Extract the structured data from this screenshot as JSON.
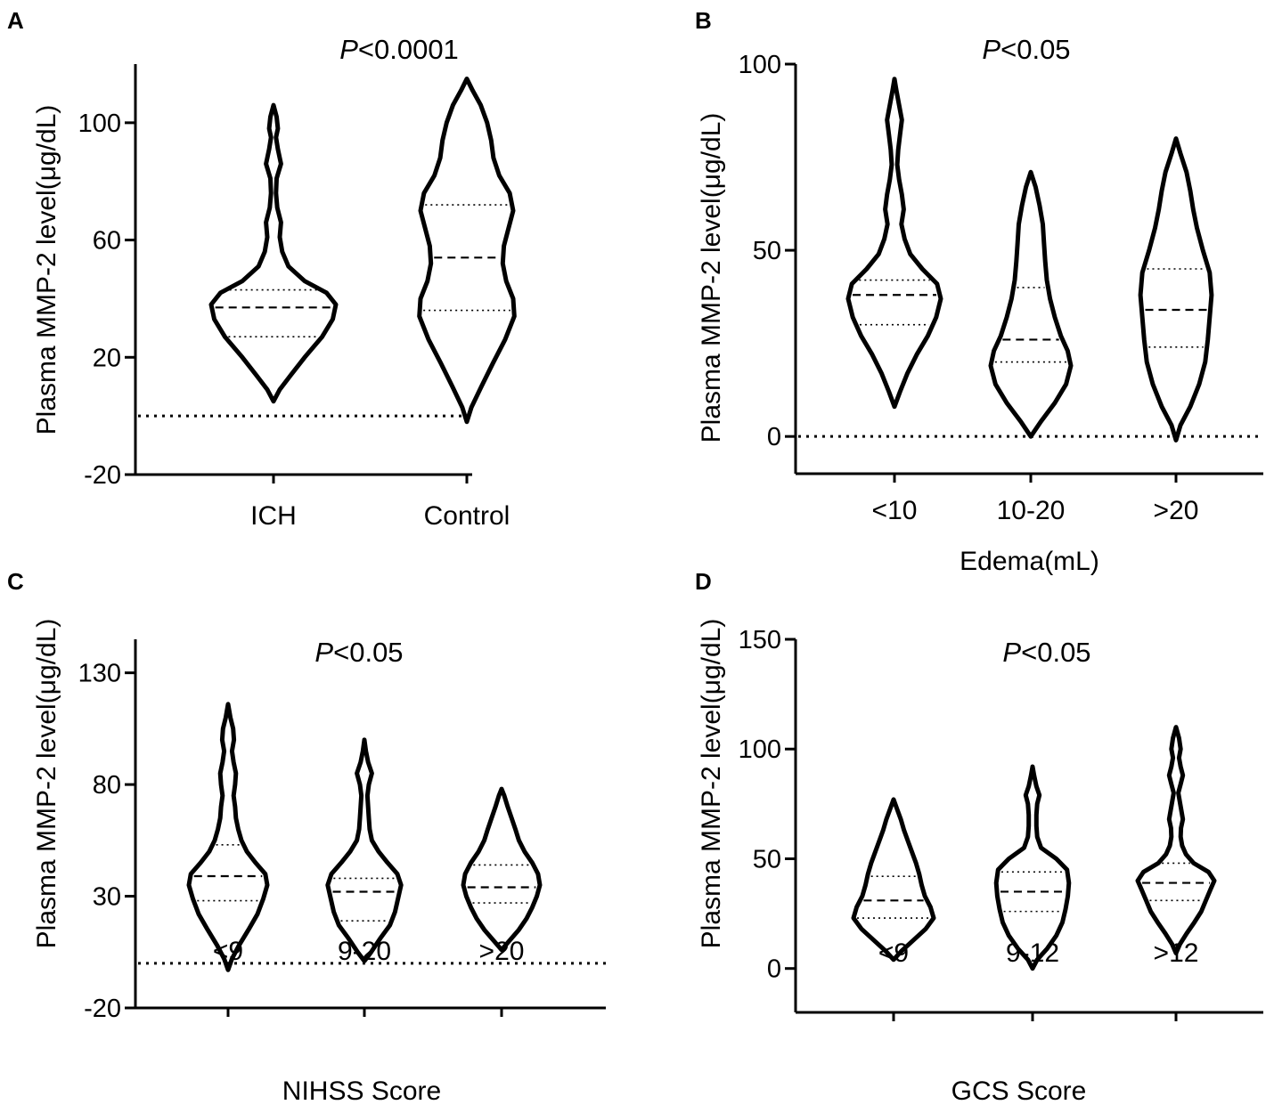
{
  "figure": {
    "panels": [
      "A",
      "B",
      "C",
      "D"
    ]
  },
  "chart_data": [
    {
      "panel": "A",
      "type": "violin",
      "title": "P<0.0001",
      "title_prefix": "P",
      "title_rest": "<0.0001",
      "xlabel": "",
      "ylabel": "Plasma MMP-2 level(μg/dL)",
      "ylim": [
        -20,
        120
      ],
      "yticks": [
        -20,
        20,
        60,
        100
      ],
      "reference_line": 0,
      "categories": [
        "ICH",
        "Control"
      ],
      "series": [
        {
          "name": "ICH",
          "min": 5,
          "max": 106,
          "q1": 27,
          "median": 37,
          "q3": 43,
          "density": [
            [
              5,
              0
            ],
            [
              9,
              0.1
            ],
            [
              14,
              0.28
            ],
            [
              20,
              0.5
            ],
            [
              27,
              0.78
            ],
            [
              33,
              0.95
            ],
            [
              38,
              1
            ],
            [
              42,
              0.85
            ],
            [
              46,
              0.5
            ],
            [
              51,
              0.24
            ],
            [
              56,
              0.14
            ],
            [
              61,
              0.1
            ],
            [
              66,
              0.12
            ],
            [
              71,
              0.06
            ],
            [
              76,
              0.04
            ],
            [
              81,
              0.05
            ],
            [
              86,
              0.12
            ],
            [
              91,
              0.07
            ],
            [
              95,
              0.04
            ],
            [
              98,
              0.07
            ],
            [
              102,
              0.05
            ],
            [
              106,
              0
            ]
          ]
        },
        {
          "name": "Control",
          "min": -2,
          "max": 115,
          "q1": 36,
          "median": 54,
          "q3": 72,
          "density": [
            [
              -2,
              0
            ],
            [
              3,
              0.08
            ],
            [
              10,
              0.25
            ],
            [
              18,
              0.45
            ],
            [
              26,
              0.66
            ],
            [
              34,
              0.82
            ],
            [
              40,
              0.8
            ],
            [
              46,
              0.68
            ],
            [
              52,
              0.62
            ],
            [
              58,
              0.64
            ],
            [
              64,
              0.72
            ],
            [
              70,
              0.8
            ],
            [
              76,
              0.74
            ],
            [
              82,
              0.56
            ],
            [
              88,
              0.46
            ],
            [
              94,
              0.42
            ],
            [
              100,
              0.35
            ],
            [
              106,
              0.24
            ],
            [
              111,
              0.1
            ],
            [
              115,
              0
            ]
          ]
        }
      ]
    },
    {
      "panel": "B",
      "type": "violin",
      "title": "P<0.05",
      "title_prefix": "P",
      "title_rest": "<0.05",
      "xlabel": "Edema(mL)",
      "ylabel": "Plasma MMP-2 level(μg/dL)",
      "ylim": [
        -10,
        100
      ],
      "yticks": [
        0,
        50,
        100
      ],
      "reference_line": 0,
      "categories": [
        "<10",
        "10-20",
        ">20"
      ],
      "series": [
        {
          "name": "<10",
          "min": 8,
          "max": 96,
          "q1": 30,
          "median": 38,
          "q3": 42,
          "density": [
            [
              8,
              0
            ],
            [
              12,
              0.12
            ],
            [
              17,
              0.28
            ],
            [
              22,
              0.48
            ],
            [
              27,
              0.72
            ],
            [
              32,
              0.9
            ],
            [
              37,
              1
            ],
            [
              41,
              0.92
            ],
            [
              45,
              0.6
            ],
            [
              49,
              0.34
            ],
            [
              53,
              0.22
            ],
            [
              57,
              0.15
            ],
            [
              61,
              0.2
            ],
            [
              65,
              0.16
            ],
            [
              69,
              0.1
            ],
            [
              73,
              0.06
            ],
            [
              77,
              0.08
            ],
            [
              81,
              0.12
            ],
            [
              85,
              0.16
            ],
            [
              89,
              0.1
            ],
            [
              93,
              0.04
            ],
            [
              96,
              0
            ]
          ]
        },
        {
          "name": "10-20",
          "min": 0,
          "max": 71,
          "q1": 20,
          "median": 26,
          "q3": 40,
          "density": [
            [
              0,
              0
            ],
            [
              4,
              0.25
            ],
            [
              9,
              0.6
            ],
            [
              14,
              0.88
            ],
            [
              19,
              1
            ],
            [
              23,
              0.92
            ],
            [
              27,
              0.75
            ],
            [
              32,
              0.6
            ],
            [
              37,
              0.48
            ],
            [
              42,
              0.4
            ],
            [
              47,
              0.36
            ],
            [
              52,
              0.33
            ],
            [
              57,
              0.3
            ],
            [
              62,
              0.22
            ],
            [
              67,
              0.12
            ],
            [
              71,
              0
            ]
          ]
        },
        {
          "name": ">20",
          "min": -1,
          "max": 80,
          "q1": 24,
          "median": 34,
          "q3": 45,
          "density": [
            [
              -1,
              0
            ],
            [
              3,
              0.12
            ],
            [
              8,
              0.38
            ],
            [
              14,
              0.62
            ],
            [
              20,
              0.78
            ],
            [
              26,
              0.85
            ],
            [
              32,
              0.9
            ],
            [
              38,
              0.95
            ],
            [
              44,
              0.9
            ],
            [
              50,
              0.72
            ],
            [
              56,
              0.56
            ],
            [
              61,
              0.46
            ],
            [
              66,
              0.38
            ],
            [
              71,
              0.28
            ],
            [
              76,
              0.12
            ],
            [
              80,
              0
            ]
          ]
        }
      ]
    },
    {
      "panel": "C",
      "type": "violin",
      "title": "P<0.05",
      "title_prefix": "P",
      "title_rest": "<0.05",
      "xlabel": "NIHSS Score",
      "ylabel": "Plasma MMP-2 level(μg/dL)",
      "ylim": [
        -20,
        145
      ],
      "yticks": [
        -20,
        30,
        80,
        130
      ],
      "reference_line": 0,
      "categories": [
        "<9",
        "9-20",
        ">20"
      ],
      "series": [
        {
          "name": "<9",
          "min": -3,
          "max": 116,
          "q1": 28,
          "median": 39,
          "q3": 53,
          "density": [
            [
              -3,
              0
            ],
            [
              2,
              0.1
            ],
            [
              8,
              0.28
            ],
            [
              15,
              0.52
            ],
            [
              22,
              0.75
            ],
            [
              29,
              0.9
            ],
            [
              35,
              1
            ],
            [
              40,
              0.95
            ],
            [
              45,
              0.7
            ],
            [
              50,
              0.48
            ],
            [
              55,
              0.34
            ],
            [
              60,
              0.26
            ],
            [
              65,
              0.2
            ],
            [
              70,
              0.18
            ],
            [
              75,
              0.14
            ],
            [
              80,
              0.18
            ],
            [
              85,
              0.2
            ],
            [
              90,
              0.14
            ],
            [
              95,
              0.1
            ],
            [
              100,
              0.15
            ],
            [
              105,
              0.13
            ],
            [
              110,
              0.06
            ],
            [
              116,
              0
            ]
          ]
        },
        {
          "name": "9-20",
          "min": 1,
          "max": 100,
          "q1": 19,
          "median": 32,
          "q3": 38,
          "density": [
            [
              1,
              0
            ],
            [
              5,
              0.18
            ],
            [
              11,
              0.42
            ],
            [
              17,
              0.68
            ],
            [
              23,
              0.82
            ],
            [
              29,
              0.9
            ],
            [
              35,
              0.98
            ],
            [
              40,
              0.88
            ],
            [
              45,
              0.62
            ],
            [
              50,
              0.38
            ],
            [
              55,
              0.2
            ],
            [
              60,
              0.14
            ],
            [
              65,
              0.12
            ],
            [
              70,
              0.1
            ],
            [
              75,
              0.08
            ],
            [
              80,
              0.12
            ],
            [
              85,
              0.2
            ],
            [
              90,
              0.1
            ],
            [
              95,
              0.04
            ],
            [
              100,
              0
            ]
          ]
        },
        {
          "name": ">20",
          "min": 6,
          "max": 78,
          "q1": 27,
          "median": 34,
          "q3": 44,
          "density": [
            [
              6,
              0
            ],
            [
              10,
              0.2
            ],
            [
              15,
              0.45
            ],
            [
              20,
              0.65
            ],
            [
              25,
              0.8
            ],
            [
              30,
              0.92
            ],
            [
              35,
              1
            ],
            [
              40,
              0.95
            ],
            [
              45,
              0.8
            ],
            [
              50,
              0.6
            ],
            [
              55,
              0.45
            ],
            [
              60,
              0.36
            ],
            [
              65,
              0.26
            ],
            [
              70,
              0.16
            ],
            [
              75,
              0.07
            ],
            [
              78,
              0
            ]
          ]
        }
      ]
    },
    {
      "panel": "D",
      "type": "violin",
      "title": "P<0.05",
      "title_prefix": "P",
      "title_rest": "<0.05",
      "xlabel": "GCS Score",
      "ylabel": "Plasma MMP-2 level(μg/dL)",
      "ylim": [
        -20,
        150
      ],
      "yticks": [
        0,
        50,
        100,
        150
      ],
      "reference_line": null,
      "categories": [
        "<9",
        "9-12",
        ">12"
      ],
      "series": [
        {
          "name": "<9",
          "min": 4,
          "max": 77,
          "q1": 23,
          "median": 31,
          "q3": 42,
          "density": [
            [
              4,
              0
            ],
            [
              8,
              0.2
            ],
            [
              13,
              0.5
            ],
            [
              18,
              0.8
            ],
            [
              23,
              1
            ],
            [
              28,
              0.92
            ],
            [
              33,
              0.78
            ],
            [
              38,
              0.7
            ],
            [
              43,
              0.64
            ],
            [
              48,
              0.56
            ],
            [
              53,
              0.46
            ],
            [
              58,
              0.36
            ],
            [
              63,
              0.26
            ],
            [
              68,
              0.18
            ],
            [
              73,
              0.08
            ],
            [
              77,
              0
            ]
          ]
        },
        {
          "name": "9-12",
          "min": 0,
          "max": 92,
          "q1": 26,
          "median": 35,
          "q3": 44,
          "density": [
            [
              0,
              0
            ],
            [
              4,
              0.12
            ],
            [
              9,
              0.38
            ],
            [
              15,
              0.62
            ],
            [
              21,
              0.78
            ],
            [
              27,
              0.86
            ],
            [
              33,
              0.92
            ],
            [
              39,
              0.95
            ],
            [
              45,
              0.9
            ],
            [
              50,
              0.62
            ],
            [
              55,
              0.22
            ],
            [
              60,
              0.12
            ],
            [
              65,
              0.1
            ],
            [
              70,
              0.1
            ],
            [
              75,
              0.12
            ],
            [
              79,
              0.18
            ],
            [
              83,
              0.1
            ],
            [
              88,
              0.04
            ],
            [
              92,
              0
            ]
          ]
        },
        {
          "name": ">12",
          "min": 7,
          "max": 110,
          "q1": 31,
          "median": 39,
          "q3": 48,
          "density": [
            [
              7,
              0
            ],
            [
              11,
              0.1
            ],
            [
              16,
              0.28
            ],
            [
              21,
              0.48
            ],
            [
              26,
              0.66
            ],
            [
              31,
              0.78
            ],
            [
              36,
              0.9
            ],
            [
              40,
              1
            ],
            [
              44,
              0.85
            ],
            [
              48,
              0.46
            ],
            [
              52,
              0.26
            ],
            [
              56,
              0.16
            ],
            [
              60,
              0.12
            ],
            [
              64,
              0.13
            ],
            [
              68,
              0.18
            ],
            [
              72,
              0.14
            ],
            [
              76,
              0.1
            ],
            [
              80,
              0.06
            ],
            [
              84,
              0.12
            ],
            [
              88,
              0.18
            ],
            [
              92,
              0.12
            ],
            [
              96,
              0.08
            ],
            [
              100,
              0.12
            ],
            [
              105,
              0.08
            ],
            [
              110,
              0
            ]
          ]
        }
      ]
    }
  ]
}
